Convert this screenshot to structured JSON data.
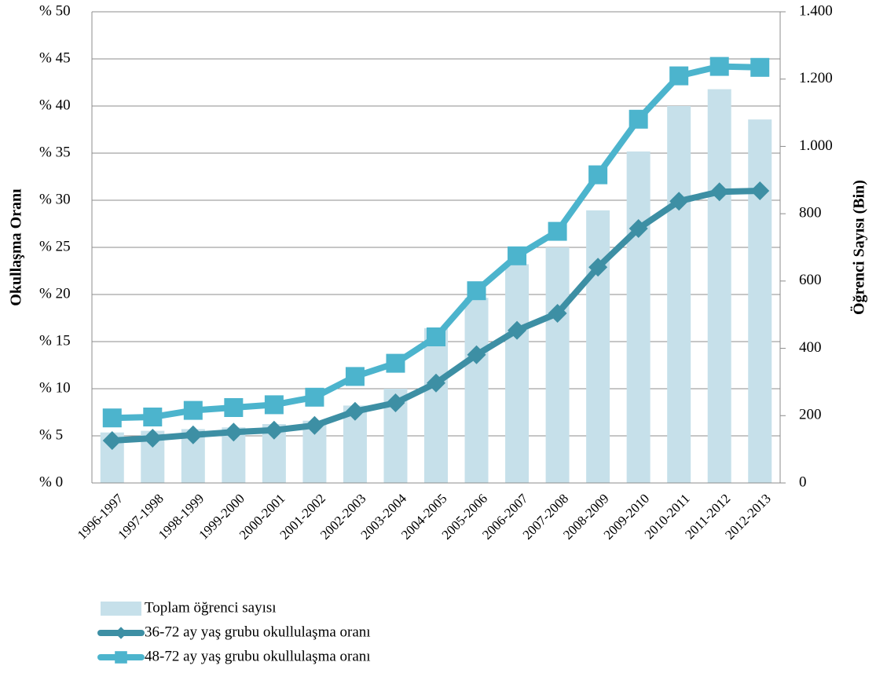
{
  "chart_data": {
    "type": "bar-line",
    "y_label": "Okullaşma Oranı",
    "y2_label": "Öğrenci Sayısı (Bin)",
    "categories": [
      "1996-1997",
      "1997-1998",
      "1998-1999",
      "1999-2000",
      "2000-2001",
      "2001-2002",
      "2002-2003",
      "2003-2004",
      "2004-2005",
      "2005-2006",
      "2006-2007",
      "2007-2008",
      "2008-2009",
      "2009-2010",
      "2010-2011",
      "2011-2012",
      "2012-2013"
    ],
    "series": [
      {
        "name": "Toplam öğrenci sayısı",
        "type": "bar",
        "axis": "y2",
        "color": "#c6e0ea",
        "values": [
          150,
          155,
          160,
          165,
          175,
          185,
          230,
          280,
          460,
          550,
          650,
          700,
          810,
          985,
          1120,
          1170,
          1080
        ]
      },
      {
        "name": "36-72 ay yaş grubu okullulaşma oranı",
        "type": "line",
        "marker": "diamond",
        "color": "#3d8fa4",
        "values": [
          4.5,
          4.75,
          5.1,
          5.4,
          5.6,
          6.1,
          7.6,
          8.5,
          10.6,
          13.6,
          16.2,
          18,
          22.9,
          27,
          29.9,
          30.9,
          31
        ]
      },
      {
        "name": "48-72 ay yaş grubu okullulaşma oranı",
        "type": "line",
        "marker": "square",
        "color": "#4cb4cd",
        "values": [
          6.9,
          7,
          7.7,
          8,
          8.3,
          9.1,
          11.3,
          12.7,
          15.5,
          20.4,
          24.1,
          26.7,
          32.7,
          38.6,
          43.2,
          44.2,
          44.1
        ]
      }
    ],
    "ylim": [
      0,
      50
    ],
    "yticks": [
      {
        "value": 0,
        "label": "% 0"
      },
      {
        "value": 5,
        "label": "% 5"
      },
      {
        "value": 10,
        "label": "% 10"
      },
      {
        "value": 15,
        "label": "% 15"
      },
      {
        "value": 20,
        "label": "% 20"
      },
      {
        "value": 25,
        "label": "% 25"
      },
      {
        "value": 30,
        "label": "% 30"
      },
      {
        "value": 35,
        "label": "% 35"
      },
      {
        "value": 40,
        "label": "% 40"
      },
      {
        "value": 45,
        "label": "% 45"
      },
      {
        "value": 50,
        "label": "% 50"
      }
    ],
    "y2lim": [
      0,
      1400
    ],
    "y2ticks": [
      0,
      200,
      400,
      600,
      800,
      {
        "value": 1000,
        "label": "1.000"
      },
      {
        "value": 1200,
        "label": "1.200"
      },
      {
        "value": 1400,
        "label": "1.400"
      }
    ],
    "grid": true,
    "legend": "bottom-left"
  }
}
